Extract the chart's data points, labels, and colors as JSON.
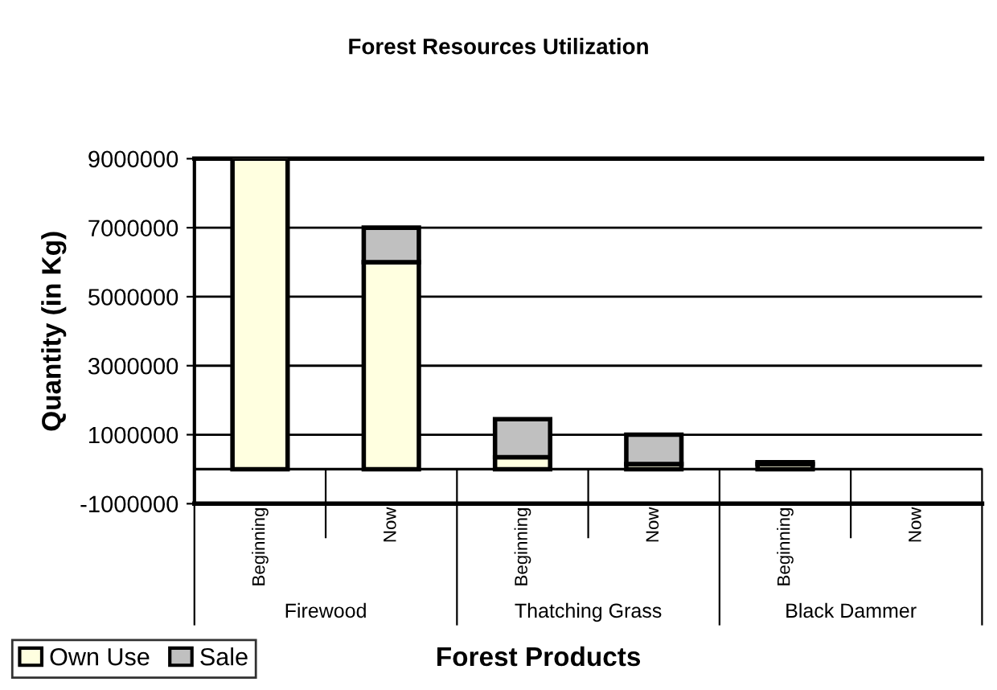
{
  "chart_data": {
    "type": "bar",
    "title": "Forest Resources Utilization",
    "xlabel": "Forest Products",
    "ylabel": "Quantity (in Kg)",
    "categories": [
      "Beginning",
      "Now",
      "Beginning",
      "Now",
      "Beginning",
      "Now"
    ],
    "series": [
      {
        "name": "Own Use",
        "color": "#ffffe0",
        "values": [
          9000000,
          6000000,
          350000,
          150000,
          150000,
          null
        ]
      },
      {
        "name": "Sale",
        "color": "#c0c0c0",
        "values": [
          null,
          1000000,
          1100000,
          850000,
          50000,
          null
        ]
      }
    ],
    "stacked": true,
    "ylim": [
      -1000000,
      9000000
    ],
    "yticks": [
      -1000000,
      1000000,
      3000000,
      5000000,
      7000000,
      9000000
    ],
    "grid": "y",
    "ref_lines": [
      {
        "axis": "y",
        "value": 0
      }
    ],
    "legend": "bottom left",
    "annotations": [
      "Firewood",
      "Thatching Grass",
      "Black Dammer"
    ]
  }
}
